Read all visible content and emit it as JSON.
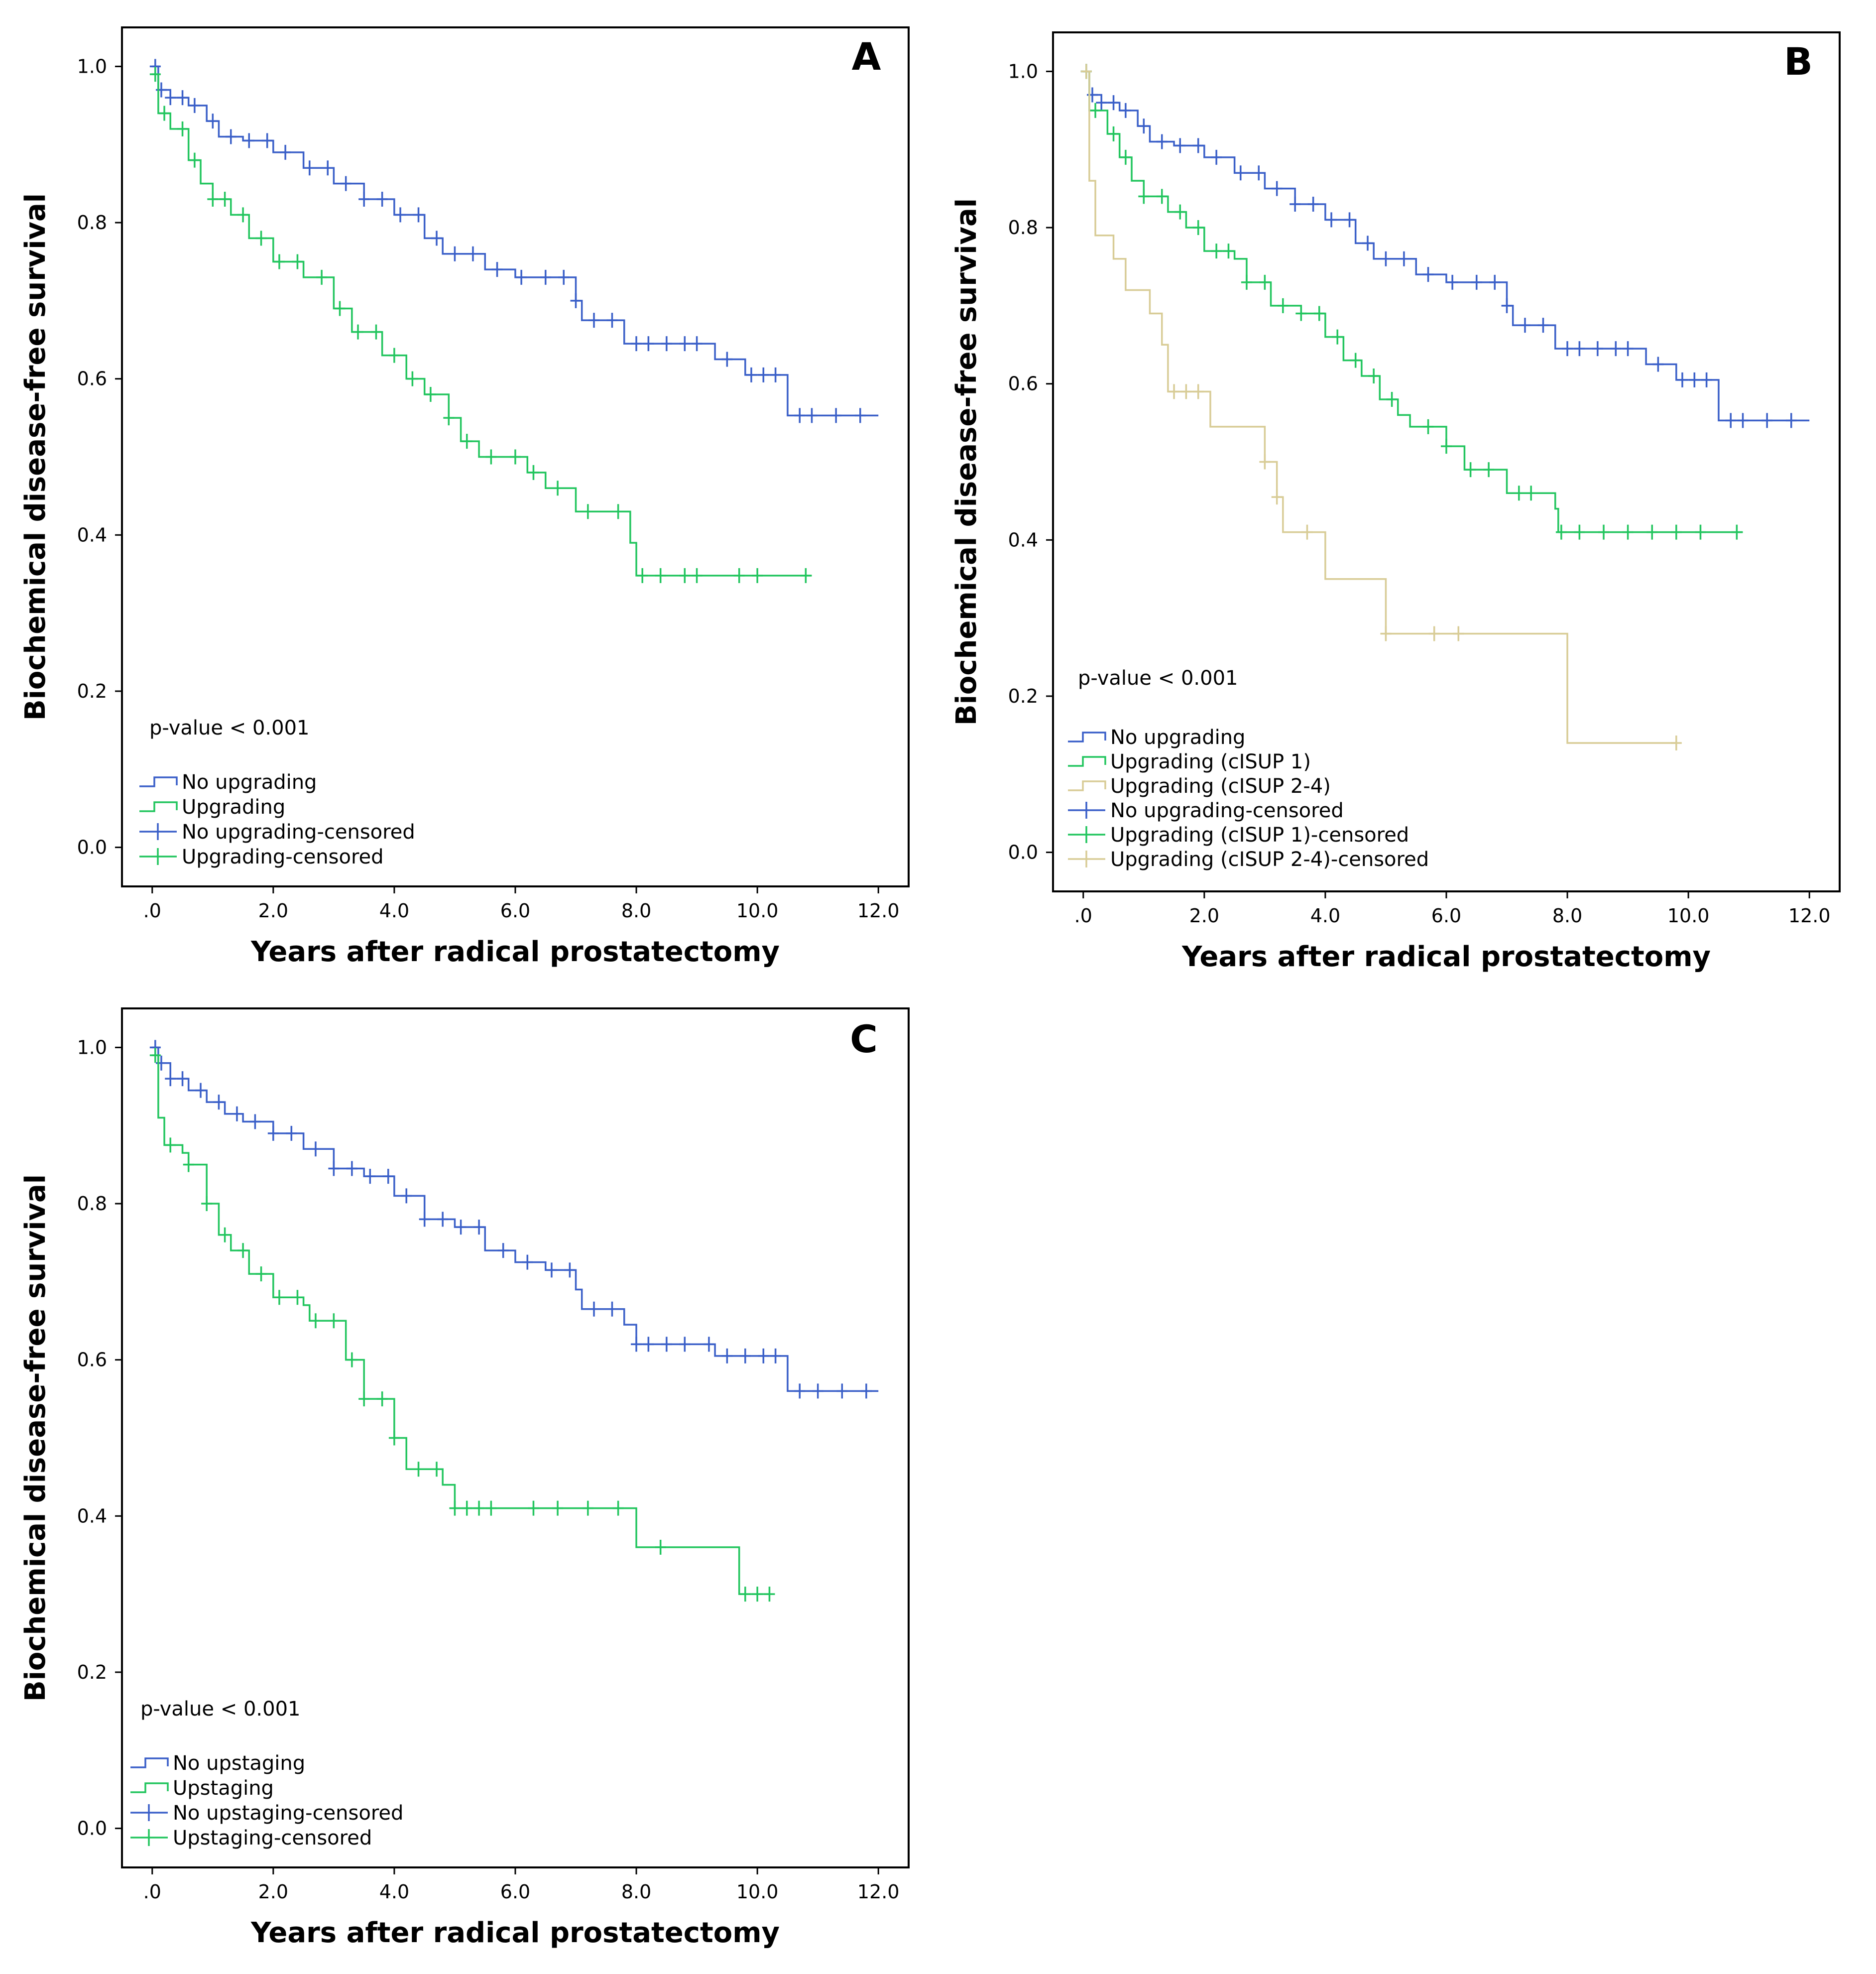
{
  "chart_data": [
    {
      "type": "line",
      "subtype": "kaplan-meier",
      "panel_label": "A",
      "title": "",
      "xlabel": "Years after radical prostatectomy",
      "ylabel": "Biochemical disease-free survival",
      "xlim": [
        -0.5,
        12.5
      ],
      "ylim": [
        -0.05,
        1.05
      ],
      "x_ticks": [
        0,
        2,
        4,
        6,
        8,
        10,
        12
      ],
      "x_tick_labels": [
        ".0",
        "2.0",
        "4.0",
        "6.0",
        "8.0",
        "10.0",
        "12.0"
      ],
      "y_ticks": [
        0,
        0.2,
        0.4,
        0.6,
        0.8,
        1.0
      ],
      "y_tick_labels": [
        "0.0",
        "0.2",
        "0.4",
        "0.6",
        "0.8",
        "1.0"
      ],
      "annotation": "p-value < 0.001",
      "legend": [
        {
          "label": "No upgrading",
          "kind": "line",
          "color": "#3a5fc8"
        },
        {
          "label": "Upgrading",
          "kind": "line",
          "color": "#22c55e"
        },
        {
          "label": "No upgrading-censored",
          "kind": "censor",
          "color": "#3a5fc8"
        },
        {
          "label": "Upgrading-censored",
          "kind": "censor",
          "color": "#22c55e"
        }
      ],
      "series": [
        {
          "name": "No upgrading",
          "color": "#3a5fc8",
          "steps": [
            [
              0,
              1.0
            ],
            [
              0.1,
              0.97
            ],
            [
              0.3,
              0.96
            ],
            [
              0.6,
              0.95
            ],
            [
              0.9,
              0.93
            ],
            [
              1.1,
              0.91
            ],
            [
              1.5,
              0.905
            ],
            [
              2.0,
              0.89
            ],
            [
              2.5,
              0.87
            ],
            [
              3.0,
              0.85
            ],
            [
              3.5,
              0.83
            ],
            [
              4.0,
              0.81
            ],
            [
              4.5,
              0.78
            ],
            [
              4.8,
              0.76
            ],
            [
              5.5,
              0.74
            ],
            [
              6.0,
              0.73
            ],
            [
              7.0,
              0.7
            ],
            [
              7.1,
              0.675
            ],
            [
              7.8,
              0.645
            ],
            [
              9.3,
              0.625
            ],
            [
              9.8,
              0.605
            ],
            [
              10.5,
              0.553
            ],
            [
              12.0,
              0.553
            ]
          ],
          "censored_x": [
            0.05,
            0.15,
            0.3,
            0.5,
            0.7,
            1.0,
            1.3,
            1.6,
            1.9,
            2.2,
            2.6,
            2.9,
            3.2,
            3.5,
            3.8,
            4.1,
            4.4,
            4.7,
            5.0,
            5.3,
            5.7,
            6.1,
            6.5,
            6.8,
            7.0,
            7.3,
            7.6,
            8.0,
            8.2,
            8.5,
            8.8,
            9.0,
            9.5,
            9.9,
            10.1,
            10.3,
            10.7,
            10.9,
            11.3,
            11.7
          ]
        },
        {
          "name": "Upgrading",
          "color": "#22c55e",
          "steps": [
            [
              0,
              0.99
            ],
            [
              0.1,
              0.94
            ],
            [
              0.3,
              0.92
            ],
            [
              0.6,
              0.88
            ],
            [
              0.8,
              0.85
            ],
            [
              1.0,
              0.83
            ],
            [
              1.3,
              0.81
            ],
            [
              1.6,
              0.78
            ],
            [
              2.0,
              0.75
            ],
            [
              2.5,
              0.73
            ],
            [
              3.0,
              0.69
            ],
            [
              3.3,
              0.66
            ],
            [
              3.8,
              0.63
            ],
            [
              4.2,
              0.6
            ],
            [
              4.5,
              0.58
            ],
            [
              4.9,
              0.55
            ],
            [
              5.1,
              0.52
            ],
            [
              5.4,
              0.5
            ],
            [
              6.2,
              0.48
            ],
            [
              6.5,
              0.46
            ],
            [
              7.0,
              0.43
            ],
            [
              7.9,
              0.39
            ],
            [
              8.0,
              0.348
            ],
            [
              10.9,
              0.348
            ]
          ],
          "censored_x": [
            0.05,
            0.2,
            0.5,
            0.7,
            1.0,
            1.2,
            1.5,
            1.8,
            2.1,
            2.4,
            2.8,
            3.1,
            3.4,
            3.7,
            4.0,
            4.3,
            4.6,
            4.9,
            5.2,
            5.6,
            6.0,
            6.3,
            6.7,
            7.2,
            7.7,
            8.1,
            8.4,
            8.8,
            9.0,
            9.7,
            10.0,
            10.8
          ]
        }
      ]
    },
    {
      "type": "line",
      "subtype": "kaplan-meier",
      "panel_label": "B",
      "title": "",
      "xlabel": "Years after radical prostatectomy",
      "ylabel": "Biochemical disease-free survival",
      "xlim": [
        -0.5,
        12.5
      ],
      "ylim": [
        -0.05,
        1.05
      ],
      "x_ticks": [
        0,
        2,
        4,
        6,
        8,
        10,
        12
      ],
      "x_tick_labels": [
        ".0",
        "2.0",
        "4.0",
        "6.0",
        "8.0",
        "10.0",
        "12.0"
      ],
      "y_ticks": [
        0,
        0.2,
        0.4,
        0.6,
        0.8,
        1.0
      ],
      "y_tick_labels": [
        "0.0",
        "0.2",
        "0.4",
        "0.6",
        "0.8",
        "1.0"
      ],
      "annotation": "p-value < 0.001",
      "legend": [
        {
          "label": "No upgrading",
          "kind": "line",
          "color": "#3a5fc8"
        },
        {
          "label": "Upgrading (cISUP 1)",
          "kind": "line",
          "color": "#22c55e"
        },
        {
          "label": "Upgrading (cISUP 2-4)",
          "kind": "line",
          "color": "#d8cc96"
        },
        {
          "label": "No upgrading-censored",
          "kind": "censor",
          "color": "#3a5fc8"
        },
        {
          "label": "Upgrading (cISUP 1)-censored",
          "kind": "censor",
          "color": "#22c55e"
        },
        {
          "label": "Upgrading (cISUP 2-4)-censored",
          "kind": "censor",
          "color": "#d8cc96"
        }
      ],
      "series": [
        {
          "name": "No upgrading",
          "color": "#3a5fc8",
          "steps": [
            [
              0,
              1.0
            ],
            [
              0.1,
              0.97
            ],
            [
              0.3,
              0.96
            ],
            [
              0.6,
              0.95
            ],
            [
              0.9,
              0.93
            ],
            [
              1.1,
              0.91
            ],
            [
              1.5,
              0.905
            ],
            [
              2.0,
              0.89
            ],
            [
              2.5,
              0.87
            ],
            [
              3.0,
              0.85
            ],
            [
              3.5,
              0.83
            ],
            [
              4.0,
              0.81
            ],
            [
              4.5,
              0.78
            ],
            [
              4.8,
              0.76
            ],
            [
              5.5,
              0.74
            ],
            [
              6.0,
              0.73
            ],
            [
              7.0,
              0.7
            ],
            [
              7.1,
              0.675
            ],
            [
              7.8,
              0.645
            ],
            [
              9.3,
              0.625
            ],
            [
              9.8,
              0.605
            ],
            [
              10.5,
              0.553
            ],
            [
              12.0,
              0.553
            ]
          ],
          "censored_x": [
            0.05,
            0.15,
            0.3,
            0.5,
            0.7,
            1.0,
            1.3,
            1.6,
            1.9,
            2.2,
            2.6,
            2.9,
            3.2,
            3.5,
            3.8,
            4.1,
            4.4,
            4.7,
            5.0,
            5.3,
            5.7,
            6.1,
            6.5,
            6.8,
            7.0,
            7.3,
            7.6,
            8.0,
            8.2,
            8.5,
            8.8,
            9.0,
            9.5,
            9.9,
            10.1,
            10.3,
            10.7,
            10.9,
            11.3,
            11.7
          ]
        },
        {
          "name": "Upgrading (cISUP 1)",
          "color": "#22c55e",
          "steps": [
            [
              0,
              1.0
            ],
            [
              0.1,
              0.95
            ],
            [
              0.4,
              0.92
            ],
            [
              0.6,
              0.89
            ],
            [
              0.8,
              0.86
            ],
            [
              1.0,
              0.84
            ],
            [
              1.4,
              0.82
            ],
            [
              1.7,
              0.8
            ],
            [
              2.0,
              0.77
            ],
            [
              2.5,
              0.76
            ],
            [
              2.7,
              0.73
            ],
            [
              3.1,
              0.7
            ],
            [
              3.6,
              0.69
            ],
            [
              4.0,
              0.66
            ],
            [
              4.3,
              0.63
            ],
            [
              4.6,
              0.61
            ],
            [
              4.9,
              0.58
            ],
            [
              5.2,
              0.56
            ],
            [
              5.4,
              0.545
            ],
            [
              6.0,
              0.52
            ],
            [
              6.3,
              0.49
            ],
            [
              7.0,
              0.46
            ],
            [
              7.8,
              0.44
            ],
            [
              7.85,
              0.41
            ],
            [
              10.9,
              0.41
            ]
          ],
          "censored_x": [
            0.05,
            0.2,
            0.5,
            0.7,
            1.0,
            1.3,
            1.6,
            1.9,
            2.2,
            2.4,
            2.7,
            3.0,
            3.3,
            3.6,
            3.9,
            4.2,
            4.5,
            4.8,
            5.1,
            5.7,
            6.0,
            6.4,
            6.7,
            7.2,
            7.4,
            7.9,
            8.2,
            8.6,
            9.0,
            9.4,
            9.8,
            10.2,
            10.8
          ]
        },
        {
          "name": "Upgrading (cISUP 2-4)",
          "color": "#d8cc96",
          "steps": [
            [
              0,
              1.0
            ],
            [
              0.1,
              0.86
            ],
            [
              0.2,
              0.79
            ],
            [
              0.5,
              0.76
            ],
            [
              0.7,
              0.72
            ],
            [
              1.1,
              0.69
            ],
            [
              1.3,
              0.65
            ],
            [
              1.4,
              0.59
            ],
            [
              2.1,
              0.545
            ],
            [
              3.0,
              0.5
            ],
            [
              3.2,
              0.455
            ],
            [
              3.3,
              0.41
            ],
            [
              4.0,
              0.35
            ],
            [
              5.0,
              0.28
            ],
            [
              8.0,
              0.14
            ],
            [
              9.8,
              0.14
            ]
          ],
          "censored_x": [
            0.05,
            1.5,
            1.7,
            1.9,
            3.0,
            3.2,
            3.7,
            5.0,
            5.8,
            6.2,
            9.8
          ]
        }
      ]
    },
    {
      "type": "line",
      "subtype": "kaplan-meier",
      "panel_label": "C",
      "title": "",
      "xlabel": "Years after radical prostatectomy",
      "ylabel": "Biochemical disease-free survival",
      "xlim": [
        -0.5,
        12.5
      ],
      "ylim": [
        -0.05,
        1.05
      ],
      "x_ticks": [
        0,
        2,
        4,
        6,
        8,
        10,
        12
      ],
      "x_tick_labels": [
        ".0",
        "2.0",
        "4.0",
        "6.0",
        "8.0",
        "10.0",
        "12.0"
      ],
      "y_ticks": [
        0,
        0.2,
        0.4,
        0.6,
        0.8,
        1.0
      ],
      "y_tick_labels": [
        "0.0",
        "0.2",
        "0.4",
        "0.6",
        "0.8",
        "1.0"
      ],
      "annotation": "p-value < 0.001",
      "legend": [
        {
          "label": "No upstaging",
          "kind": "line",
          "color": "#3a5fc8"
        },
        {
          "label": "Upstaging",
          "kind": "line",
          "color": "#22c55e"
        },
        {
          "label": "No upstaging-censored",
          "kind": "censor",
          "color": "#3a5fc8"
        },
        {
          "label": "Upstaging-censored",
          "kind": "censor",
          "color": "#22c55e"
        }
      ],
      "series": [
        {
          "name": "No upstaging",
          "color": "#3a5fc8",
          "steps": [
            [
              0,
              1.0
            ],
            [
              0.1,
              0.98
            ],
            [
              0.3,
              0.96
            ],
            [
              0.6,
              0.945
            ],
            [
              0.9,
              0.93
            ],
            [
              1.2,
              0.915
            ],
            [
              1.5,
              0.905
            ],
            [
              2.0,
              0.89
            ],
            [
              2.5,
              0.87
            ],
            [
              3.0,
              0.845
            ],
            [
              3.5,
              0.835
            ],
            [
              4.0,
              0.81
            ],
            [
              4.5,
              0.78
            ],
            [
              5.0,
              0.77
            ],
            [
              5.5,
              0.74
            ],
            [
              6.0,
              0.725
            ],
            [
              6.5,
              0.715
            ],
            [
              7.0,
              0.69
            ],
            [
              7.1,
              0.665
            ],
            [
              7.8,
              0.645
            ],
            [
              8.0,
              0.62
            ],
            [
              9.3,
              0.605
            ],
            [
              10.5,
              0.56
            ],
            [
              12.0,
              0.56
            ]
          ],
          "censored_x": [
            0.05,
            0.15,
            0.3,
            0.5,
            0.8,
            1.1,
            1.4,
            1.7,
            2.0,
            2.3,
            2.7,
            3.0,
            3.3,
            3.6,
            3.9,
            4.2,
            4.5,
            4.8,
            5.1,
            5.4,
            5.8,
            6.2,
            6.6,
            6.9,
            7.3,
            7.6,
            8.0,
            8.2,
            8.5,
            8.8,
            9.2,
            9.5,
            9.8,
            10.1,
            10.3,
            10.7,
            11.0,
            11.4,
            11.8
          ]
        },
        {
          "name": "Upstaging",
          "color": "#22c55e",
          "steps": [
            [
              0,
              0.99
            ],
            [
              0.1,
              0.91
            ],
            [
              0.2,
              0.875
            ],
            [
              0.5,
              0.865
            ],
            [
              0.6,
              0.85
            ],
            [
              0.9,
              0.8
            ],
            [
              1.1,
              0.76
            ],
            [
              1.3,
              0.74
            ],
            [
              1.6,
              0.71
            ],
            [
              2.0,
              0.68
            ],
            [
              2.5,
              0.67
            ],
            [
              2.6,
              0.65
            ],
            [
              3.2,
              0.6
            ],
            [
              3.5,
              0.55
            ],
            [
              4.0,
              0.5
            ],
            [
              4.2,
              0.46
            ],
            [
              4.8,
              0.44
            ],
            [
              5.0,
              0.41
            ],
            [
              8.0,
              0.36
            ],
            [
              9.7,
              0.3
            ],
            [
              10.2,
              0.3
            ]
          ],
          "censored_x": [
            0.05,
            0.3,
            0.6,
            0.9,
            1.2,
            1.5,
            1.8,
            2.1,
            2.4,
            2.7,
            3.0,
            3.3,
            3.5,
            3.8,
            4.0,
            4.4,
            4.7,
            5.0,
            5.2,
            5.4,
            5.6,
            6.3,
            6.7,
            7.2,
            7.7,
            8.4,
            9.8,
            10.0,
            10.2
          ]
        }
      ]
    }
  ]
}
